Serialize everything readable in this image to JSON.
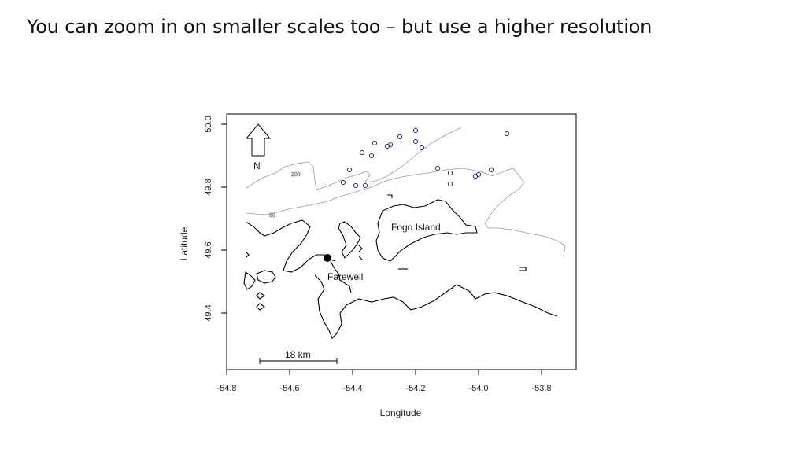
{
  "slide": {
    "title": "You can zoom in on smaller scales too – but use a higher resolution"
  },
  "map": {
    "xlabel": "Longitude",
    "ylabel": "Latitude",
    "x_ticks": [
      "-54.8",
      "-54.6",
      "-54.4",
      "-54.2",
      "-54.0",
      "-53.8"
    ],
    "y_ticks": [
      "49.4",
      "49.6",
      "49.8",
      "50.0"
    ],
    "labels": {
      "island": "Fogo Island",
      "town": "Farewell",
      "north": "N",
      "scale": "18 km",
      "contour_200": "200",
      "contour_50": "50"
    },
    "colors": {
      "coast": "#000000",
      "contour": "#9a9a9a",
      "points": "#2b2bbf"
    },
    "sample_points": [
      [
        -54.43,
        49.815
      ],
      [
        -54.41,
        49.855
      ],
      [
        -54.39,
        49.805
      ],
      [
        -54.37,
        49.91
      ],
      [
        -54.36,
        49.805
      ],
      [
        -54.34,
        49.9
      ],
      [
        -54.33,
        49.94
      ],
      [
        -54.29,
        49.93
      ],
      [
        -54.28,
        49.935
      ],
      [
        -54.25,
        49.96
      ],
      [
        -54.2,
        49.98
      ],
      [
        -54.2,
        49.945
      ],
      [
        -54.18,
        49.925
      ],
      [
        -54.13,
        49.86
      ],
      [
        -54.09,
        49.845
      ],
      [
        -54.09,
        49.81
      ],
      [
        -54.01,
        49.835
      ],
      [
        -54.0,
        49.84
      ],
      [
        -53.96,
        49.855
      ],
      [
        -53.91,
        49.97
      ]
    ],
    "farewell_point": [
      -54.48,
      49.575
    ]
  }
}
